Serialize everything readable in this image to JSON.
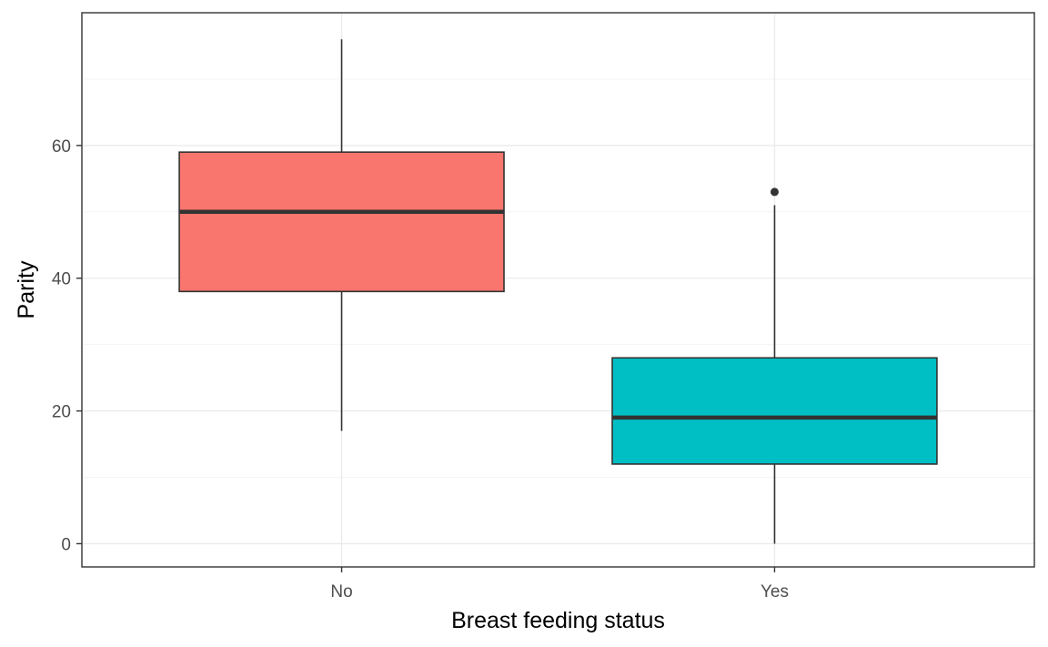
{
  "chart_data": {
    "type": "boxplot",
    "xlabel": "Breast feeding status",
    "ylabel": "Parity",
    "ylim": [
      -3.5,
      80
    ],
    "yticks": [
      0,
      20,
      40,
      60
    ],
    "categories": [
      "No",
      "Yes"
    ],
    "boxes": [
      {
        "category": "No",
        "whisker_low": 17,
        "q1": 38,
        "median": 50,
        "q3": 59,
        "whisker_high": 76,
        "outliers": [],
        "color": "#F8766D"
      },
      {
        "category": "Yes",
        "whisker_low": 0,
        "q1": 12,
        "median": 19,
        "q3": 28,
        "whisker_high": 51,
        "outliers": [
          53
        ],
        "color": "#00BFC4"
      }
    ],
    "grid": true,
    "legend": "none"
  }
}
